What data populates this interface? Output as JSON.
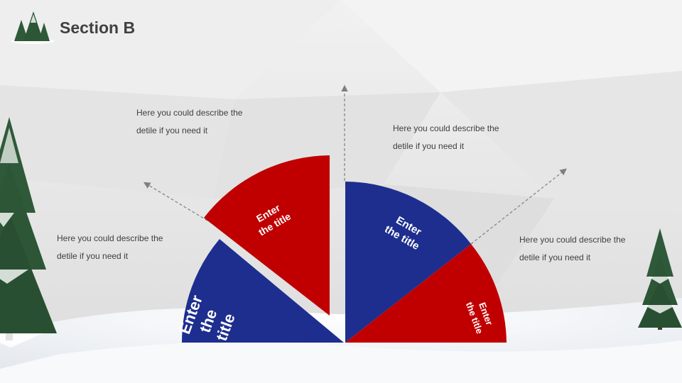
{
  "header": {
    "title": "Section B"
  },
  "segments": [
    {
      "color": "#1e2e8e",
      "label_line1": "Enter",
      "label_line2": "the",
      "label_line3": "title"
    },
    {
      "color": "#c00000",
      "label_line1": "Enter",
      "label_line2": "the title"
    },
    {
      "color": "#1e2e8e",
      "label_line1": "Enter",
      "label_line2": "the title"
    },
    {
      "color": "#c00000",
      "label_line1": "Enter",
      "label_line2": "the title"
    }
  ],
  "descriptions": [
    {
      "line1": "Here you could describe the",
      "line2": "detile if you need it"
    },
    {
      "line1": "Here you could describe the",
      "line2": "detile if you need it"
    },
    {
      "line1": "Here you could describe the",
      "line2": "detile if you need it"
    },
    {
      "line1": "Here you could describe the",
      "line2": "detile if you need it"
    }
  ],
  "arrow_color": "#7f7f7f",
  "icons": [
    "pine-tree-icon"
  ]
}
